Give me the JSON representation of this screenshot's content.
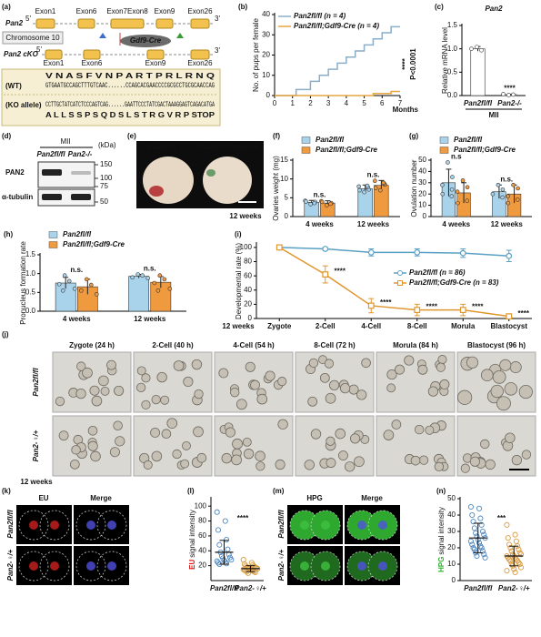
{
  "figure": {
    "a": {
      "label": "(a)",
      "gene": "Pan2",
      "five": "5'",
      "three": "3'",
      "chromosome": "Chromosome 10",
      "cre": "Gdf9-Cre",
      "ko_gene": "Pan2 cKO",
      "exons_top": [
        "Exon1",
        "Exon6",
        "Exon7Exon8",
        "Exon9",
        "Exon26"
      ],
      "exons_bottom": [
        "Exon1",
        "Exon6",
        "Exon9",
        "Exon26"
      ],
      "wt_label": "(WT)",
      "ko_label": "(KO allele)",
      "wt_aa": "V N A S F V N  P A R T P R L R N Q",
      "wt_seq": "GTGAATGCCAGCTTTGTCAAC......CCAGCACGAACCCCGCGCCTGCGCAACCAG",
      "ko_seq": "CCTTGCTATCATCTCCCAGTCAG......GAATTCCCTATCGACTAAAGGAGTCAGACATGA",
      "ko_aa": "A L L S S P S Q  D S L S T R G V R P STOP"
    },
    "d": {
      "label": "(d)",
      "group": "MII",
      "lanes": [
        "Pan2fl/fl",
        "Pan2-/-"
      ],
      "unit": "(kDa)",
      "bands": [
        "PAN2",
        "α-tubulin"
      ],
      "markers": [
        "150",
        "100",
        "75",
        "50"
      ]
    },
    "e": {
      "label": "(e)",
      "samples": [
        "Pan2fl/fl",
        "Pan2fl/fl;Gdf9-Cre"
      ],
      "age": "12 weeks"
    },
    "j": {
      "label": "(j)",
      "stages": [
        "Zygote (24 h)",
        "2-Cell (40 h)",
        "4-Cell (54 h)",
        "8-Cell (72 h)",
        "Morula (84 h)",
        "Blastocyst (96 h)"
      ],
      "genotypes": [
        "Pan2fl/fl",
        "Pan2-♀/+"
      ],
      "age": "12 weeks"
    },
    "k": {
      "label": "(k)",
      "channels": [
        "EU",
        "Merge"
      ],
      "genotypes": [
        "Pan2fl/fl",
        "Pan2-♀/+"
      ]
    },
    "m": {
      "label": "(m)",
      "channels": [
        "HPG",
        "Merge"
      ],
      "genotypes": [
        "Pan2fl/fl",
        "Pan2-♀/+"
      ]
    }
  },
  "chart_data": [
    {
      "panel": "(b)",
      "type": "line",
      "ylabel": "No. of pups per female",
      "xlabel": "Months",
      "x": [
        0,
        1.2,
        1.2,
        2,
        2,
        2.5,
        2.5,
        3,
        3,
        3.5,
        3.5,
        4,
        4,
        4.5,
        4.5,
        5,
        5,
        5.5,
        5.5,
        6,
        6,
        6.5,
        6.5,
        7
      ],
      "xlim": [
        0,
        7
      ],
      "xticks": [
        0,
        1,
        2,
        3,
        4,
        5,
        6,
        7
      ],
      "ylim": [
        0,
        40
      ],
      "yticks": [
        0,
        10,
        20,
        30,
        40
      ],
      "series": [
        {
          "name": "Pan2fl/fl (n = 4)",
          "color": "#8aaec8",
          "values": [
            0,
            0,
            3,
            3,
            7,
            7,
            10,
            10,
            13,
            13,
            16,
            16,
            19,
            19,
            22,
            22,
            25,
            25,
            28,
            28,
            31,
            31,
            34,
            34
          ]
        },
        {
          "name": "Pan2fl/fl;Gdf9-Cre (n = 4)",
          "color": "#e8a640",
          "values": [
            0,
            0,
            0,
            0,
            0,
            0,
            0,
            0,
            0,
            0,
            0,
            0,
            0,
            0,
            0,
            0,
            0,
            0,
            1,
            1,
            1,
            1,
            2,
            2
          ]
        }
      ],
      "annotations": [
        "****",
        "P<0.0001"
      ],
      "legend": "upper-left"
    },
    {
      "panel": "(c)",
      "type": "bar",
      "title": "Pan2",
      "ylabel": "Relative mRNA level",
      "categories": [
        "Pan2fl/fl",
        "Pan2-/-"
      ],
      "group_label": "MII",
      "ylim": [
        0,
        1.5
      ],
      "yticks": [
        {
          "value": 0,
          "label": "0.0"
        },
        {
          "value": 0.5,
          "label": "0.5"
        },
        {
          "value": 1,
          "label": "1.0"
        },
        {
          "value": 1.5,
          "label": "1.5"
        }
      ],
      "series": [
        {
          "color": "#ffffff",
          "values": [
            1.0,
            0.02
          ],
          "errors": [
            0.05,
            0.01
          ],
          "points": [
            [
              1.04,
              0.97,
              1.0
            ],
            [
              0.01,
              0.02,
              0.03
            ]
          ]
        }
      ],
      "significance": [
        null,
        "****"
      ]
    },
    {
      "panel": "(f)",
      "type": "bar",
      "ylabel": "Ovaries weight (mg)",
      "categories": [
        "4 weeks",
        "12 weeks"
      ],
      "ylim": [
        0,
        15
      ],
      "yticks": [
        0,
        5,
        10,
        15
      ],
      "series": [
        {
          "name": "Pan2fl/fl",
          "color": "#a9d3ea",
          "values": [
            3.8,
            7.4
          ],
          "errors": [
            0.5,
            1.0
          ],
          "points": [
            [
              3.3,
              3.9,
              4.2,
              3.6,
              4.0
            ],
            [
              6.5,
              7.2,
              8.0,
              7.8,
              7.0,
              8.2
            ]
          ]
        },
        {
          "name": "Pan2fl/fl;Gdf9-Cre",
          "color": "#ef9a3e",
          "values": [
            3.6,
            8.3
          ],
          "errors": [
            0.6,
            1.3
          ],
          "points": [
            [
              3.0,
              3.6,
              4.1,
              3.4,
              3.9
            ],
            [
              7.0,
              8.5,
              9.5,
              8.8,
              7.6,
              9.0
            ]
          ]
        }
      ],
      "significance": [
        "n.s.",
        "n.s."
      ],
      "legend": "top-left"
    },
    {
      "panel": "(g)",
      "type": "bar",
      "ylabel": "Ovulation number",
      "categories": [
        "4 weeks",
        "12 weeks"
      ],
      "ylim": [
        0,
        50
      ],
      "yticks": [
        0,
        10,
        20,
        30,
        40,
        50
      ],
      "series": [
        {
          "name": "Pan2fl/fl",
          "color": "#a9d3ea",
          "values": [
            30,
            22
          ],
          "errors": [
            12,
            6
          ],
          "points": [
            [
              48,
              35,
              28,
              24,
              20,
              18
            ],
            [
              28,
              24,
              20,
              17
            ]
          ]
        },
        {
          "name": "Pan2fl/fl;Gdf9-Cre",
          "color": "#ef9a3e",
          "values": [
            21,
            20
          ],
          "errors": [
            9,
            8
          ],
          "points": [
            [
              32,
              26,
              22,
              14,
              12
            ],
            [
              28,
              25,
              18,
              15,
              12
            ]
          ]
        }
      ],
      "significance": [
        "n.s",
        "n.s."
      ],
      "legend": "top-left"
    },
    {
      "panel": "(h)",
      "type": "bar",
      "ylabel": "Pronucleus formation rate",
      "categories": [
        "4 weeks",
        "12 weeks"
      ],
      "ylim": [
        0,
        1.5
      ],
      "yticks": [
        {
          "value": 0,
          "label": "0.0"
        },
        {
          "value": 0.5,
          "label": "0.5"
        },
        {
          "value": 1,
          "label": "1.0"
        },
        {
          "value": 1.5,
          "label": "1.5"
        }
      ],
      "series": [
        {
          "name": "Pan2fl/fl",
          "color": "#a9d3ea",
          "values": [
            0.75,
            0.93
          ],
          "errors": [
            0.15,
            0.05
          ],
          "points": [
            [
              0.95,
              0.8,
              0.72,
              0.6,
              0.55
            ],
            [
              0.98,
              0.95,
              0.9,
              0.88
            ]
          ]
        },
        {
          "name": "Pan2fl/fl;Gdf9-Cre",
          "color": "#ef9a3e",
          "values": [
            0.65,
            0.77
          ],
          "errors": [
            0.2,
            0.15
          ],
          "points": [
            [
              0.85,
              0.7,
              0.55,
              0.45
            ],
            [
              0.95,
              0.85,
              0.75,
              0.6,
              0.55
            ]
          ]
        }
      ],
      "significance": [
        "n.s.",
        "n.s."
      ],
      "legend": "top-left"
    },
    {
      "panel": "(i)",
      "type": "line",
      "ylabel": "Developmental rate (%)",
      "x_note": "12 weeks",
      "categories": [
        "Zygote",
        "2-Cell",
        "4-Cell",
        "8-Cell",
        "Morula",
        "Blastocyst"
      ],
      "ylim": [
        0,
        105
      ],
      "yticks": [
        0,
        20,
        40,
        60,
        80,
        100
      ],
      "series": [
        {
          "name": "Pan2fl/fl (n = 86)",
          "color": "#5aa0c4",
          "marker": "circle",
          "values": [
            100,
            98,
            93,
            93,
            92,
            88
          ],
          "errors": [
            0,
            2,
            5,
            5,
            6,
            8
          ]
        },
        {
          "name": "Pan2fl/fl;Gdf9-Cre (n = 83)",
          "color": "#e0962e",
          "marker": "square",
          "values": [
            100,
            62,
            18,
            12,
            12,
            3
          ],
          "errors": [
            0,
            12,
            10,
            8,
            8,
            3
          ]
        }
      ],
      "significance": [
        null,
        "****",
        "****",
        "****",
        "****",
        "****"
      ],
      "legend": "center-right"
    },
    {
      "panel": "(l)",
      "type": "strip",
      "ylabel_highlight": "EU",
      "ylabel_color": "#d11",
      "ylabel": "signal intensity",
      "categories": [
        "Pan2fl/fl",
        "Pan2-♀/+"
      ],
      "colors": [
        "#4d86c0",
        "#d99a40"
      ],
      "ylim": [
        0,
        110
      ],
      "yticks": [
        20,
        40,
        60,
        80,
        100
      ],
      "points": [
        [
          92,
          80,
          68,
          55,
          48,
          42,
          38,
          35,
          33,
          31,
          30,
          28,
          27,
          26,
          25,
          24,
          23,
          22
        ],
        [
          28,
          24,
          22,
          21,
          20,
          19,
          18,
          18,
          17,
          17,
          16,
          16,
          15,
          15,
          14,
          14,
          13,
          13,
          12,
          12,
          11,
          10
        ]
      ],
      "means": [
        38,
        16
      ],
      "sds": [
        16,
        4
      ],
      "significance": "****"
    },
    {
      "panel": "(n)",
      "type": "strip",
      "ylabel_highlight": "HPG",
      "ylabel_color": "#2bb32b",
      "ylabel": "signal intensity",
      "categories": [
        "Pan2fl/fl",
        "Pan2-♀/+"
      ],
      "colors": [
        "#4d86c0",
        "#d99a40"
      ],
      "ylim": [
        0,
        50
      ],
      "yticks": [
        0,
        10,
        20,
        30,
        40,
        50
      ],
      "points": [
        [
          45,
          44,
          40,
          38,
          36,
          34,
          32,
          30,
          29,
          28,
          27,
          26,
          25,
          24,
          23,
          22,
          21,
          20,
          20,
          19,
          18,
          17,
          16,
          15,
          14
        ],
        [
          34,
          28,
          26,
          24,
          22,
          21,
          20,
          19,
          18,
          17,
          16,
          16,
          15,
          15,
          14,
          14,
          13,
          13,
          12,
          12,
          11,
          10,
          10,
          9,
          8,
          7,
          6,
          5
        ]
      ],
      "means": [
        26,
        15
      ],
      "sds": [
        9,
        6
      ],
      "significance": "***"
    }
  ]
}
